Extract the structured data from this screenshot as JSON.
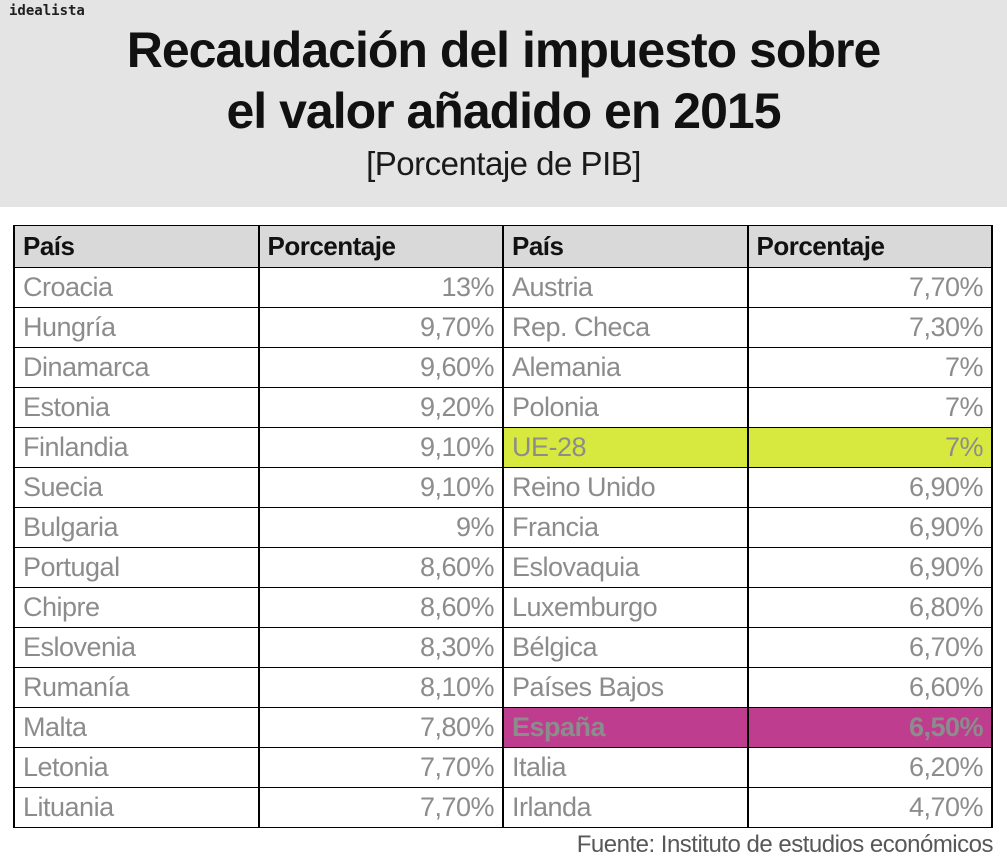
{
  "logo_text": "idealista",
  "header": {
    "title_line1": "Recaudación del impuesto sobre",
    "title_line2": "el valor añadido en 2015",
    "subtitle": "[Porcentaje de PIB]"
  },
  "table": {
    "col_headers": [
      "País",
      "Porcentaje",
      "País",
      "Porcentaje"
    ],
    "rows": [
      {
        "left": {
          "country": "Croacia",
          "value": "13%"
        },
        "right": {
          "country": "Austria",
          "value": "7,70%"
        }
      },
      {
        "left": {
          "country": "Hungría",
          "value": "9,70%"
        },
        "right": {
          "country": "Rep. Checa",
          "value": "7,30%"
        }
      },
      {
        "left": {
          "country": "Dinamarca",
          "value": "9,60%"
        },
        "right": {
          "country": "Alemania",
          "value": "7%"
        }
      },
      {
        "left": {
          "country": "Estonia",
          "value": "9,20%"
        },
        "right": {
          "country": "Polonia",
          "value": "7%"
        }
      },
      {
        "left": {
          "country": "Finlandia",
          "value": "9,10%"
        },
        "right": {
          "country": "UE-28",
          "value": "7%",
          "highlight": "eu"
        }
      },
      {
        "left": {
          "country": "Suecia",
          "value": "9,10%"
        },
        "right": {
          "country": "Reino Unido",
          "value": "6,90%"
        }
      },
      {
        "left": {
          "country": "Bulgaria",
          "value": "9%"
        },
        "right": {
          "country": "Francia",
          "value": "6,90%"
        }
      },
      {
        "left": {
          "country": "Portugal",
          "value": "8,60%"
        },
        "right": {
          "country": "Eslovaquia",
          "value": "6,90%"
        }
      },
      {
        "left": {
          "country": "Chipre",
          "value": "8,60%"
        },
        "right": {
          "country": "Luxemburgo",
          "value": "6,80%"
        }
      },
      {
        "left": {
          "country": "Eslovenia",
          "value": "8,30%"
        },
        "right": {
          "country": "Bélgica",
          "value": "6,70%"
        }
      },
      {
        "left": {
          "country": "Rumanía",
          "value": "8,10%"
        },
        "right": {
          "country": "Países Bajos",
          "value": "6,60%"
        }
      },
      {
        "left": {
          "country": "Malta",
          "value": "7,80%"
        },
        "right": {
          "country": "España",
          "value": "6,50%",
          "highlight": "spain"
        }
      },
      {
        "left": {
          "country": "Letonia",
          "value": "7,70%"
        },
        "right": {
          "country": "Italia",
          "value": "6,20%"
        }
      },
      {
        "left": {
          "country": "Lituania",
          "value": "7,70%"
        },
        "right": {
          "country": "Irlanda",
          "value": "4,70%"
        }
      }
    ]
  },
  "footer": {
    "source": "Fuente: Instituto de estudios económicos"
  },
  "colors": {
    "band_bg": "#e4e4e4",
    "table_header_bg": "#d9d9d9",
    "row_text": "#8c8c8c",
    "highlight_eu": "#d7e93f",
    "highlight_spain": "#bf3d8e",
    "highlight_spain_text": "#ffffff"
  },
  "chart_data": {
    "type": "table",
    "title": "Recaudación del impuesto sobre el valor añadido en 2015",
    "subtitle": "[Porcentaje de PIB]",
    "source": "Fuente: Instituto de estudios económicos",
    "columns": [
      "País",
      "Porcentaje"
    ],
    "unit": "% de PIB",
    "entries": [
      {
        "pais": "Croacia",
        "porcentaje": 13.0
      },
      {
        "pais": "Hungría",
        "porcentaje": 9.7
      },
      {
        "pais": "Dinamarca",
        "porcentaje": 9.6
      },
      {
        "pais": "Estonia",
        "porcentaje": 9.2
      },
      {
        "pais": "Finlandia",
        "porcentaje": 9.1
      },
      {
        "pais": "Suecia",
        "porcentaje": 9.1
      },
      {
        "pais": "Bulgaria",
        "porcentaje": 9.0
      },
      {
        "pais": "Portugal",
        "porcentaje": 8.6
      },
      {
        "pais": "Chipre",
        "porcentaje": 8.6
      },
      {
        "pais": "Eslovenia",
        "porcentaje": 8.3
      },
      {
        "pais": "Rumanía",
        "porcentaje": 8.1
      },
      {
        "pais": "Malta",
        "porcentaje": 7.8
      },
      {
        "pais": "Letonia",
        "porcentaje": 7.7
      },
      {
        "pais": "Lituania",
        "porcentaje": 7.7
      },
      {
        "pais": "Austria",
        "porcentaje": 7.7
      },
      {
        "pais": "Rep. Checa",
        "porcentaje": 7.3
      },
      {
        "pais": "Alemania",
        "porcentaje": 7.0
      },
      {
        "pais": "Polonia",
        "porcentaje": 7.0
      },
      {
        "pais": "UE-28",
        "porcentaje": 7.0,
        "highlight": "eu-average"
      },
      {
        "pais": "Reino Unido",
        "porcentaje": 6.9
      },
      {
        "pais": "Francia",
        "porcentaje": 6.9
      },
      {
        "pais": "Eslovaquia",
        "porcentaje": 6.9
      },
      {
        "pais": "Luxemburgo",
        "porcentaje": 6.8
      },
      {
        "pais": "Bélgica",
        "porcentaje": 6.7
      },
      {
        "pais": "Países Bajos",
        "porcentaje": 6.6
      },
      {
        "pais": "España",
        "porcentaje": 6.5,
        "highlight": "spain"
      },
      {
        "pais": "Italia",
        "porcentaje": 6.2
      },
      {
        "pais": "Irlanda",
        "porcentaje": 4.7
      }
    ]
  }
}
